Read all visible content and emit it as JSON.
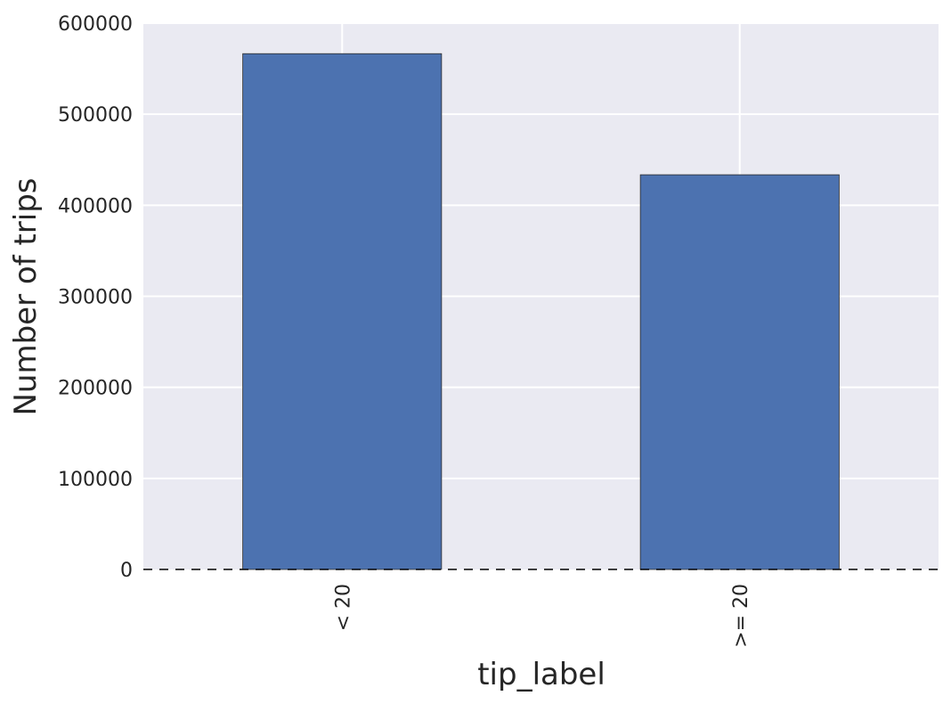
{
  "chart_data": {
    "type": "bar",
    "categories": [
      "< 20",
      ">= 20"
    ],
    "values": [
      566500,
      433500
    ],
    "title": "",
    "xlabel": "tip_label",
    "ylabel": "Number of trips",
    "ylim": [
      0,
      600000
    ],
    "yticks": [
      0,
      100000,
      200000,
      300000,
      400000,
      500000,
      600000
    ],
    "ytick_labels": [
      "0",
      "100000",
      "200000",
      "300000",
      "400000",
      "500000",
      "600000"
    ],
    "grid": true,
    "baseline": "dashed",
    "colors": {
      "bar": "#4c72b0",
      "plot_background": "#eaeaf2",
      "grid": "#ffffff",
      "text": "#262626"
    }
  }
}
